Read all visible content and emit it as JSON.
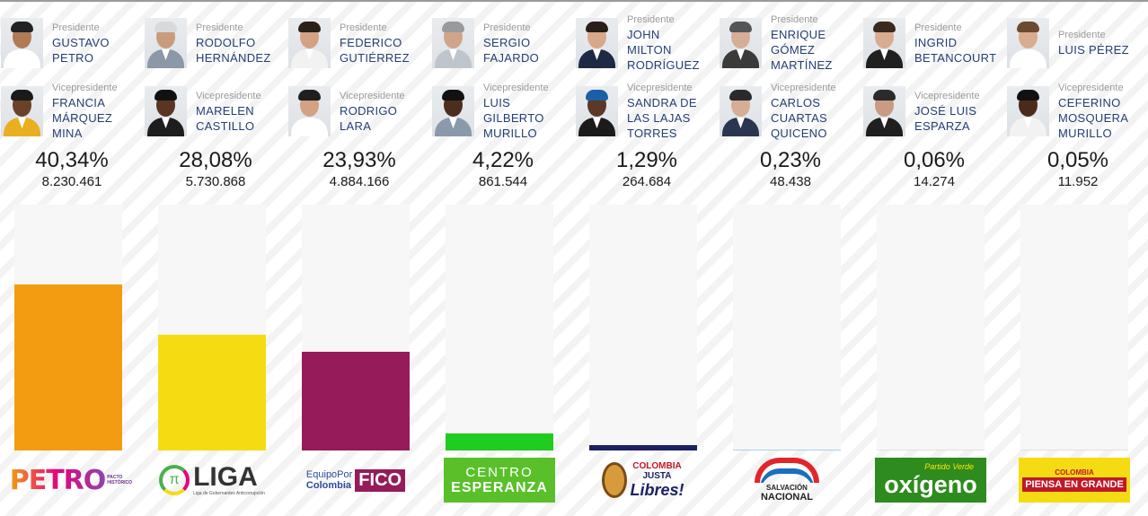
{
  "labels": {
    "presidente": "Presidente",
    "vicepresidente": "Vicepresidente"
  },
  "chart_data": {
    "type": "bar",
    "title": "",
    "xlabel": "",
    "ylabel": "",
    "ylim": [
      0,
      100
    ],
    "categories": [
      "PETRO",
      "LIGA",
      "Equipo Por Colombia FICO",
      "CENTRO ESPERANZA",
      "COLOMBIA JUSTA Libres!",
      "SALVACIÓN NACIONAL",
      "Partido Verde oxígeno",
      "COLOMBIA PIENSA EN GRANDE"
    ],
    "values": [
      40.34,
      28.08,
      23.93,
      4.22,
      1.29,
      0.23,
      0.06,
      0.05
    ],
    "grid": false,
    "legend": "none"
  },
  "candidates": [
    {
      "presidente": [
        "GUSTAVO",
        "PETRO"
      ],
      "vicepresidente": [
        "FRANCIA",
        "MÁRQUEZ",
        "MINA"
      ],
      "percent_text": "40,34%",
      "votes_text": "8.230.461",
      "color": "#f39c12",
      "logo": {
        "text": "PETRO",
        "small": "PACTO HISTÓRICO"
      },
      "pres_skin": "#b07a55",
      "pres_hair": "#222222",
      "pres_suit": "#ffffff",
      "vp_skin": "#6b4129",
      "vp_hair": "#1a1a1a",
      "vp_suit": "#e8b020"
    },
    {
      "presidente": [
        "RODOLFO",
        "HERNÁNDEZ"
      ],
      "vicepresidente": [
        "MARELEN",
        "CASTILLO"
      ],
      "percent_text": "28,08%",
      "votes_text": "5.730.868",
      "color": "#f5dc12",
      "logo": {
        "text": "LIGA",
        "small": "Liga de Gobernantes Anticorrupción"
      },
      "pres_skin": "#c99a7c",
      "pres_hair": "#d9d9d9",
      "pres_suit": "#8a98a8",
      "vp_skin": "#5a3522",
      "vp_hair": "#111111",
      "vp_suit": "#1e1e1e"
    },
    {
      "presidente": [
        "FEDERICO",
        "GUTIÉRREZ"
      ],
      "vicepresidente": [
        "RODRIGO",
        "LARA"
      ],
      "percent_text": "23,93%",
      "votes_text": "4.884.166",
      "color": "#951b5b",
      "logo": {
        "prefix": "EquipoPor",
        "prefix2": "Colombia",
        "text": "FICO"
      },
      "pres_skin": "#d2a283",
      "pres_hair": "#2b2119",
      "pres_suit": "#f2f2f2",
      "vp_skin": "#d2a283",
      "vp_hair": "#1f1f1f",
      "vp_suit": "#ffffff"
    },
    {
      "presidente": [
        "SERGIO",
        "FAJARDO"
      ],
      "vicepresidente": [
        "LUIS",
        "GILBERTO",
        "MURILLO"
      ],
      "percent_text": "4,22%",
      "votes_text": "861.544",
      "color": "#1fcc1f",
      "logo": {
        "text": "CENTRO",
        "text2": "ESPERANZA"
      },
      "pres_skin": "#d0a589",
      "pres_hair": "#9a9a9a",
      "pres_suit": "#bfc5cc",
      "vp_skin": "#4c2e1e",
      "vp_hair": "#111111",
      "vp_suit": "#8a9aad"
    },
    {
      "presidente": [
        "JOHN",
        "MILTON",
        "RODRÍGUEZ"
      ],
      "vicepresidente": [
        "SANDRA DE",
        "LAS LAJAS",
        "TORRES"
      ],
      "percent_text": "1,29%",
      "votes_text": "264.684",
      "color": "#1c2163",
      "logo": {
        "text": "COLOMBIA",
        "text2": "JUSTA",
        "text3": "Libres!"
      },
      "pres_skin": "#d9a88a",
      "pres_hair": "#2a1f18",
      "pres_suit": "#1e2a44",
      "vp_skin": "#5c3826",
      "vp_hair": "#1a5fa8",
      "vp_suit": "#1b1b1b"
    },
    {
      "presidente": [
        "ENRIQUE",
        "GÓMEZ",
        "MARTÍNEZ"
      ],
      "vicepresidente": [
        "CARLOS",
        "CUARTAS",
        "QUICENO"
      ],
      "percent_text": "0,23%",
      "votes_text": "48.438",
      "color": "#a8d1f0",
      "logo": {
        "text": "SALVACIÓN",
        "text2": "NACIONAL"
      },
      "pres_skin": "#d6ad95",
      "pres_hair": "#555555",
      "pres_suit": "#3a3a3a",
      "vp_skin": "#d6ad95",
      "vp_hair": "#2a2a2a",
      "vp_suit": "#2a3550"
    },
    {
      "presidente": [
        "INGRID",
        "BETANCOURT"
      ],
      "vicepresidente": [
        "JOSÉ LUIS",
        "ESPARZA"
      ],
      "percent_text": "0,06%",
      "votes_text": "14.274",
      "color": "#e0e0e0",
      "logo": {
        "text": "oxígeno",
        "small": "Partido Verde"
      },
      "pres_skin": "#d9ab8f",
      "pres_hair": "#3a2a1e",
      "pres_suit": "#202020",
      "vp_skin": "#c99b80",
      "vp_hair": "#2b2b2b",
      "vp_suit": "#1f1f1f"
    },
    {
      "presidente": [
        "LUIS PÉREZ"
      ],
      "vicepresidente": [
        "CEFERINO",
        "MOSQUERA",
        "MURILLO"
      ],
      "percent_text": "0,05%",
      "votes_text": "11.952",
      "color": "#e0e0e0",
      "logo": {
        "text": "PIENSA EN GRANDE",
        "small": "COLOMBIA"
      },
      "pres_skin": "#d9ab8f",
      "pres_hair": "#6a4a30",
      "pres_suit": "#ffffff",
      "vp_skin": "#4a2b1b",
      "vp_hair": "#111111",
      "vp_suit": "#f2f2f2"
    }
  ]
}
